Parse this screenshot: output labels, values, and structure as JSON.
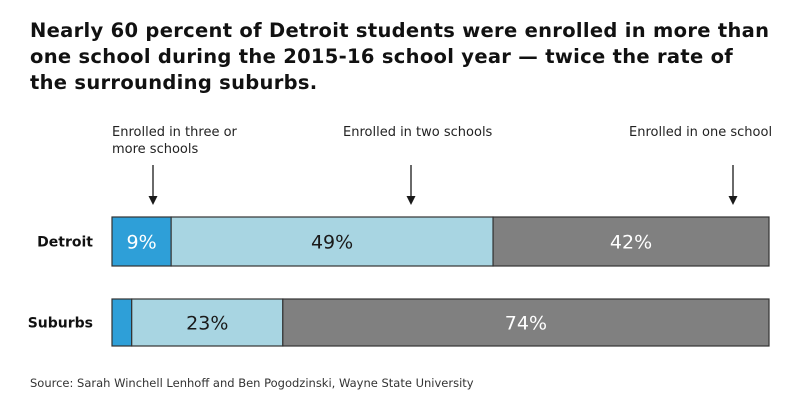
{
  "title": "Nearly 60 percent of Detroit students were enrolled in more than one school during the 2015-16 school year — twice the rate of the surrounding suburbs.",
  "source": "Source: Sarah Winchell Lenhoff and Ben Pogodzinski, Wayne State University",
  "chart_data": {
    "type": "bar",
    "orientation": "horizontal",
    "stacked": true,
    "normalized": true,
    "categories": [
      "Detroit",
      "Suburbs"
    ],
    "series": [
      {
        "name": "Enrolled in three or more schools",
        "values": [
          9,
          3
        ],
        "labels": [
          "9%",
          ""
        ],
        "color": "#2e9fd8"
      },
      {
        "name": "Enrolled in two schools",
        "values": [
          49,
          23
        ],
        "labels": [
          "49%",
          "23%"
        ],
        "color": "#a8d5e2"
      },
      {
        "name": "Enrolled in one school",
        "values": [
          42,
          74
        ],
        "labels": [
          "42%",
          "74%"
        ],
        "color": "#808080"
      }
    ],
    "label_colors": [
      "#ffffff",
      "#1a1a1a",
      "#ffffff"
    ],
    "legend": "top"
  }
}
